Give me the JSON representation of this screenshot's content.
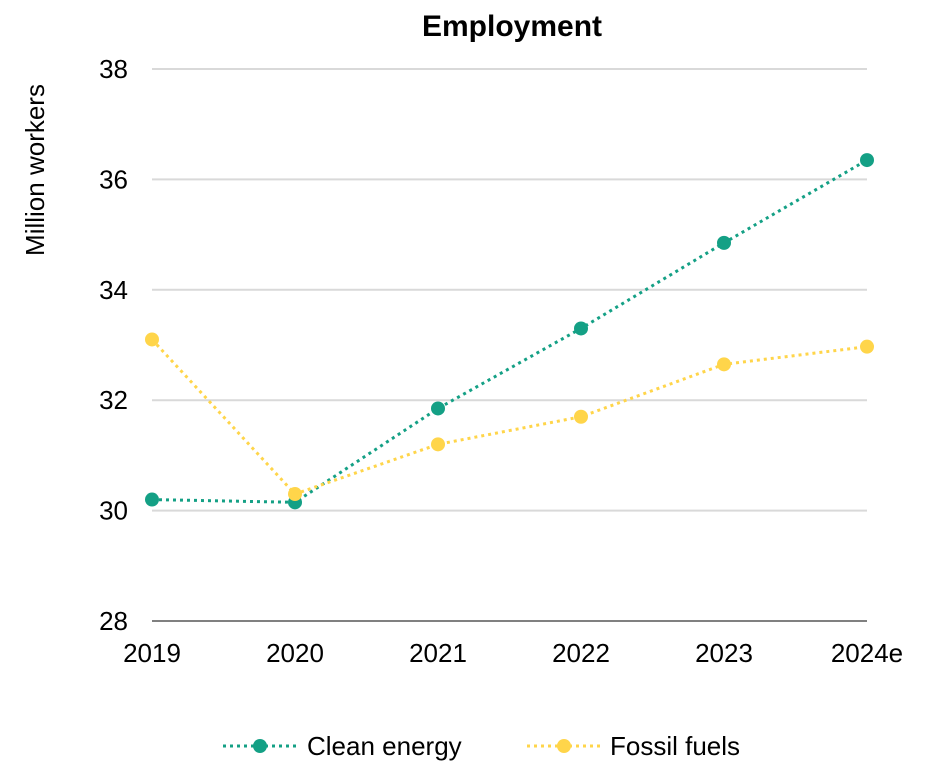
{
  "chart_data": {
    "type": "line",
    "title": "Employment",
    "xlabel": "",
    "ylabel": "Million workers",
    "categories": [
      "2019",
      "2020",
      "2021",
      "2022",
      "2023",
      "2024e"
    ],
    "ylim": [
      28,
      38
    ],
    "yticks": [
      28,
      30,
      32,
      34,
      36,
      38
    ],
    "grid": true,
    "line_style": "dotted",
    "legend_position": "bottom",
    "series": [
      {
        "name": "Clean energy",
        "color": "#14a085",
        "values": [
          30.2,
          30.15,
          31.85,
          33.3,
          34.85,
          36.35
        ]
      },
      {
        "name": "Fossil fuels",
        "color": "#ffd54a",
        "values": [
          33.1,
          30.3,
          31.2,
          31.7,
          32.65,
          32.97
        ]
      }
    ]
  }
}
